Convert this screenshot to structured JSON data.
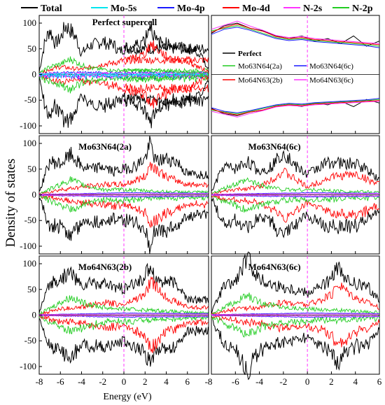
{
  "figure": {
    "ylabel": "Density of states",
    "xlabel": "Energy (eV)"
  },
  "legend": [
    {
      "label": "Total",
      "color": "#000000"
    },
    {
      "label": "Mo-5s",
      "color": "#00e5ee"
    },
    {
      "label": "Mo-4p",
      "color": "#1a1aff"
    },
    {
      "label": "Mo-4d",
      "color": "#ff0000"
    },
    {
      "label": "N-2s",
      "color": "#ff33ff"
    },
    {
      "label": "N-2p",
      "color": "#22cc22"
    }
  ],
  "inset_legend": [
    {
      "label": "Perfect",
      "color": "#000000"
    },
    {
      "label": "Mo63N64(2a)",
      "color": "#22cc22"
    },
    {
      "label": "Mo63N64(6c)",
      "color": "#1a1aff"
    },
    {
      "label": "Mo64N63(2b)",
      "color": "#ff0000"
    },
    {
      "label": "Mo64N63(6c)",
      "color": "#ff33ff"
    }
  ],
  "panel_labels": [
    "Perfect supercell",
    "Mo63N64(2a)",
    "Mo63N64(6c)",
    "Mo64N63(2b)",
    "Mo64N63(6c)"
  ],
  "chart_data": {
    "type": "line",
    "xlim_left": [
      -8,
      0
    ],
    "xlim_right": [
      -8,
      6
    ],
    "ylim": [
      -115,
      115
    ],
    "xticks_left": [
      "-8",
      "-6",
      "-4",
      "-2",
      "0"
    ],
    "xticks_right": [
      "-4",
      "-2",
      "0",
      "2",
      "4",
      "6"
    ],
    "yticks": [
      "100",
      "50",
      "0",
      "-50",
      "-100"
    ],
    "fermi_level": 0,
    "panels": [
      {
        "name": "Perfect supercell",
        "x_range": [
          -8,
          0
        ],
        "series": [
          {
            "name": "Total",
            "x": [
              -8,
              -7.5,
              -7,
              -6.5,
              -6,
              -5.5,
              -5,
              -4.5,
              -4,
              -3.5,
              -3,
              -2.5,
              -2,
              -1.5,
              -1,
              -0.5,
              0
            ],
            "y": [
              5,
              60,
              88,
              60,
              70,
              95,
              85,
              70,
              40,
              52,
              58,
              60,
              65,
              58,
              60,
              45,
              50
            ]
          },
          {
            "name": "Mo-4d",
            "x": [
              -8,
              -7,
              -6,
              -5,
              -4,
              -3,
              -2,
              -1,
              0
            ],
            "y": [
              2,
              10,
              15,
              12,
              10,
              15,
              20,
              22,
              28
            ]
          },
          {
            "name": "N-2p",
            "x": [
              -8,
              -7,
              -6,
              -5,
              -4,
              -3,
              -2,
              -1,
              0
            ],
            "y": [
              2,
              15,
              20,
              30,
              18,
              12,
              10,
              8,
              8
            ]
          },
          {
            "name": "Mo-4p",
            "x": [
              -8,
              -6,
              -4,
              -2,
              0
            ],
            "y": [
              1,
              3,
              4,
              3,
              3
            ]
          },
          {
            "name": "N-2s",
            "x": [
              -8,
              -6,
              -4,
              -2,
              0
            ],
            "y": [
              1,
              2,
              2,
              2,
              2
            ]
          },
          {
            "name": "Mo-5s",
            "x": [
              -8,
              -6,
              -4,
              -2,
              0
            ],
            "y": [
              0.5,
              1,
              1,
              1,
              1
            ]
          }
        ]
      },
      {
        "name": "Mo63N64(2a)",
        "x_range": [
          -8,
          6
        ],
        "series": [
          {
            "name": "Total",
            "x": [
              -8,
              -7,
              -6,
              -5,
              -4,
              -3,
              -2,
              -1,
              0,
              1,
              2,
              2.5,
              3,
              4,
              5,
              6
            ],
            "y": [
              5,
              65,
              60,
              78,
              55,
              50,
              55,
              45,
              50,
              55,
              70,
              100,
              65,
              70,
              65,
              40
            ]
          },
          {
            "name": "Mo-4d",
            "x": [
              -8,
              -6,
              -4,
              -2,
              0,
              2,
              2.5,
              4,
              6
            ],
            "y": [
              2,
              10,
              15,
              20,
              20,
              35,
              60,
              35,
              20
            ]
          },
          {
            "name": "N-2p",
            "x": [
              -8,
              -6,
              -5,
              -4,
              -2,
              0,
              2,
              4,
              6
            ],
            "y": [
              2,
              20,
              30,
              20,
              10,
              10,
              8,
              6,
              5
            ]
          }
        ]
      },
      {
        "name": "Mo63N64(6c)",
        "x_range": [
          -8,
          6
        ],
        "series": [
          {
            "name": "Total",
            "x": [
              -8,
              -7,
              -6,
              -5,
              -4,
              -3,
              -2,
              -1,
              0,
              1,
              2,
              3,
              4,
              5,
              6
            ],
            "y": [
              5,
              55,
              50,
              65,
              45,
              55,
              85,
              55,
              40,
              55,
              65,
              60,
              60,
              50,
              30
            ]
          },
          {
            "name": "Mo-4d",
            "x": [
              -8,
              -6,
              -4,
              -2,
              0,
              2,
              4,
              6
            ],
            "y": [
              2,
              10,
              15,
              45,
              15,
              35,
              40,
              20
            ]
          },
          {
            "name": "N-2p",
            "x": [
              -8,
              -6,
              -5,
              -4,
              -2,
              0,
              2,
              4,
              6
            ],
            "y": [
              2,
              20,
              28,
              20,
              10,
              10,
              8,
              6,
              5
            ]
          }
        ]
      },
      {
        "name": "Mo64N63(2b)",
        "x_range": [
          -8,
          6
        ],
        "series": [
          {
            "name": "Total",
            "x": [
              -8,
              -7,
              -6,
              -5,
              -4,
              -3,
              -2,
              -1,
              0,
              1,
              2,
              2.5,
              3,
              4,
              5,
              6
            ],
            "y": [
              5,
              60,
              70,
              85,
              55,
              65,
              60,
              55,
              50,
              60,
              75,
              100,
              70,
              65,
              60,
              30
            ]
          },
          {
            "name": "Mo-4d",
            "x": [
              -8,
              -6,
              -4,
              -2,
              0,
              2,
              2.5,
              4,
              6
            ],
            "y": [
              2,
              12,
              15,
              25,
              20,
              40,
              65,
              35,
              15
            ]
          },
          {
            "name": "N-2p",
            "x": [
              -8,
              -6,
              -5,
              -4,
              -2,
              0,
              2,
              4,
              6
            ],
            "y": [
              2,
              25,
              35,
              25,
              15,
              12,
              10,
              8,
              5
            ]
          }
        ]
      },
      {
        "name": "Mo64N63(6c)",
        "x_range": [
          -8,
          6
        ],
        "series": [
          {
            "name": "Total",
            "x": [
              -8,
              -7,
              -6,
              -5,
              -4,
              -3,
              -2,
              -1,
              0,
              1,
              2,
              2.5,
              3,
              4,
              5,
              6
            ],
            "y": [
              5,
              55,
              65,
              110,
              70,
              60,
              55,
              50,
              45,
              55,
              70,
              95,
              70,
              60,
              55,
              30
            ]
          },
          {
            "name": "Mo-4d",
            "x": [
              -8,
              -6,
              -4,
              -2,
              0,
              2,
              2.5,
              4,
              6
            ],
            "y": [
              2,
              12,
              15,
              25,
              20,
              38,
              62,
              35,
              15
            ]
          },
          {
            "name": "N-2p",
            "x": [
              -8,
              -6,
              -5,
              -4,
              -2,
              0,
              2,
              4,
              6
            ],
            "y": [
              2,
              25,
              38,
              25,
              15,
              12,
              10,
              8,
              5
            ]
          }
        ]
      }
    ]
  }
}
